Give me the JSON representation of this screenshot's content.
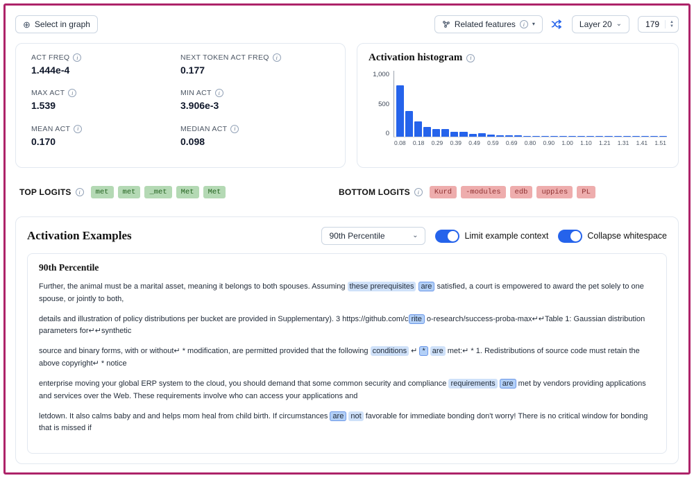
{
  "page": {
    "border_color": "#ad2369",
    "accent_color": "#2563eb"
  },
  "icons": {
    "select_crosshair": "⊕",
    "info": "i",
    "chevron_down": "⌄",
    "chevron_down_filled": "▾",
    "stepper_up": "▲",
    "stepper_down": "▼"
  },
  "toolbar": {
    "select_in_graph_label": "Select in graph",
    "related_features_label": "Related features",
    "layer_label": "Layer 20",
    "feature_index": "179"
  },
  "stats": {
    "items": [
      {
        "label": "ACT FREQ",
        "value": "1.444e-4"
      },
      {
        "label": "NEXT TOKEN ACT FREQ",
        "value": "0.177"
      },
      {
        "label": "MAX ACT",
        "value": "1.539"
      },
      {
        "label": "MIN ACT",
        "value": "3.906e-3"
      },
      {
        "label": "MEAN ACT",
        "value": "0.170"
      },
      {
        "label": "MEDIAN ACT",
        "value": "0.098"
      }
    ]
  },
  "chart_data": {
    "type": "bar",
    "title": "Activation histogram",
    "values": [
      780,
      390,
      230,
      150,
      112,
      120,
      70,
      76,
      46,
      50,
      30,
      26,
      20,
      16,
      12,
      14,
      9,
      11,
      12,
      7,
      5,
      9,
      4,
      6,
      3,
      4,
      2,
      3,
      2,
      4
    ],
    "x_tick_labels": [
      "0.08",
      "0.18",
      "0.29",
      "0.39",
      "0.49",
      "0.59",
      "0.69",
      "0.80",
      "0.90",
      "1.00",
      "1.10",
      "1.21",
      "1.31",
      "1.41",
      "1.51"
    ],
    "y_tick_labels": [
      "1,000",
      "500",
      "0"
    ],
    "xlabel": "",
    "ylabel": "",
    "ylim": [
      0,
      1000
    ],
    "grid": false,
    "bar_color": "#2563eb"
  },
  "logits": {
    "top_label": "TOP LOGITS",
    "bottom_label": "BOTTOM LOGITS",
    "top": [
      "met",
      "met",
      "_met",
      "Met",
      "Met"
    ],
    "bottom": [
      "Kurd",
      "-modules",
      "edb",
      "uppies",
      "PL"
    ],
    "colors": {
      "green_bg": "#b4d9b4",
      "green_text": "#23621f",
      "red_bg": "#eeadad",
      "red_text": "#8f3131"
    }
  },
  "examples": {
    "section_title": "Activation Examples",
    "percentile_selected": "90th Percentile",
    "toggle_limit_label": "Limit example context",
    "toggle_collapse_label": "Collapse whitespace",
    "group_title": "90th Percentile",
    "highlight_light": "#cfe1f9",
    "highlight_strong_bg": "#b3d0f7",
    "highlight_strong_border": "#6b97e8",
    "items": [
      {
        "segments": [
          {
            "t": "Further, the animal must be a marital asset, meaning it belongs to both spouses. Assuming ",
            "h": 0
          },
          {
            "t": "these prerequisites",
            "h": 1
          },
          {
            "t": " ",
            "h": 0
          },
          {
            "t": "are",
            "h": 2
          },
          {
            "t": " satisfied, a court is empowered to award the pet solely to one spouse, or jointly to both,",
            "h": 0
          }
        ]
      },
      {
        "segments": [
          {
            "t": "details and illustration of policy distributions per bucket are provided in Supplementary). 3 https://github.com/c",
            "h": 0
          },
          {
            "t": "rite",
            "h": 2
          },
          {
            "t": " o-research/success-proba-max↵↵Table 1: Gaussian distribution parameters for↵↵synthetic",
            "h": 0
          }
        ]
      },
      {
        "segments": [
          {
            "t": "source and binary forms, with or without↵ * modification, are permitted provided that the following ",
            "h": 0
          },
          {
            "t": "conditions",
            "h": 1
          },
          {
            "t": " ↵ ",
            "h": 0
          },
          {
            "t": "*",
            "h": 2
          },
          {
            "t": " ",
            "h": 0
          },
          {
            "t": "are",
            "h": 1
          },
          {
            "t": " met:↵ * 1. Redistributions of source code must retain the above copyright↵ * notice",
            "h": 0
          }
        ]
      },
      {
        "segments": [
          {
            "t": "enterprise moving your global ERP system to the cloud, you should demand that some common security and compliance ",
            "h": 0
          },
          {
            "t": "requirements",
            "h": 1
          },
          {
            "t": " ",
            "h": 0
          },
          {
            "t": "are",
            "h": 2
          },
          {
            "t": " met by vendors providing applications and services over the Web. These requirements involve who can access your applications and",
            "h": 0
          }
        ]
      },
      {
        "segments": [
          {
            "t": "letdown. It also calms baby and and helps mom heal from child birth. If circumstances ",
            "h": 0
          },
          {
            "t": "are",
            "h": 2
          },
          {
            "t": " ",
            "h": 0
          },
          {
            "t": "not",
            "h": 1
          },
          {
            "t": " favorable for immediate bonding don't worry! There is no critical window for bonding that is missed if",
            "h": 0
          }
        ]
      }
    ]
  }
}
